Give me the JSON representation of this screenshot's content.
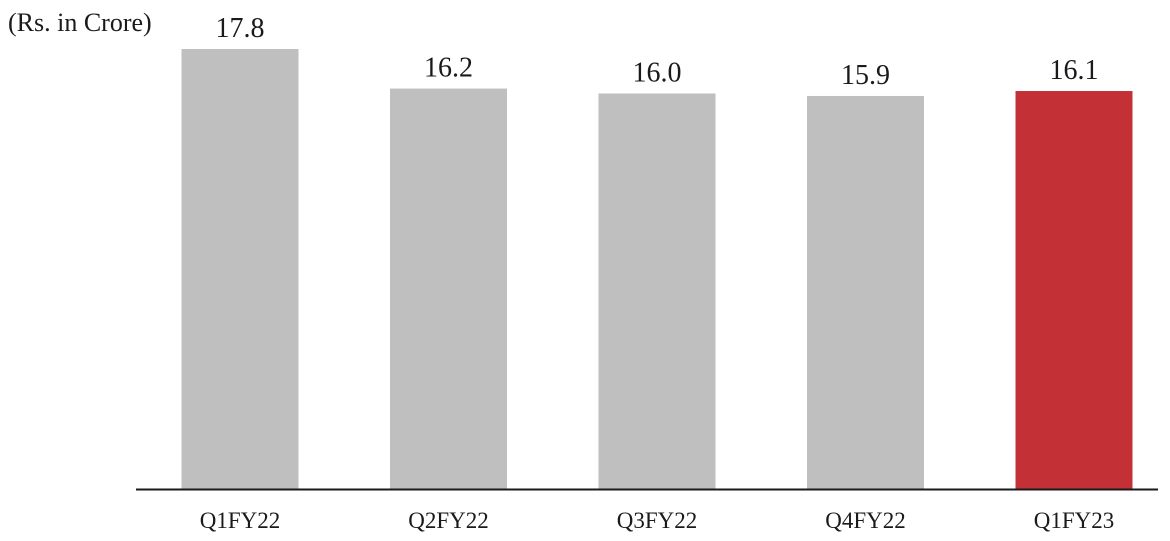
{
  "chart_data": {
    "type": "bar",
    "ylabel": "(Rs. in Crore)",
    "categories": [
      "Q1FY22",
      "Q2FY22",
      "Q3FY22",
      "Q4FY22",
      "Q1FY23"
    ],
    "values": [
      17.8,
      16.2,
      16.0,
      15.9,
      16.1
    ],
    "value_labels": [
      "17.8",
      "16.2",
      "16.0",
      "15.9",
      "16.1"
    ],
    "ylim": [
      0,
      17.8
    ],
    "grid": false,
    "legend": "none",
    "colors": {
      "default": "#bfbfbf",
      "highlight": "#c33036",
      "axis": "#1a1a1a",
      "text": "#1a1a1a"
    },
    "highlight_index": 4
  }
}
